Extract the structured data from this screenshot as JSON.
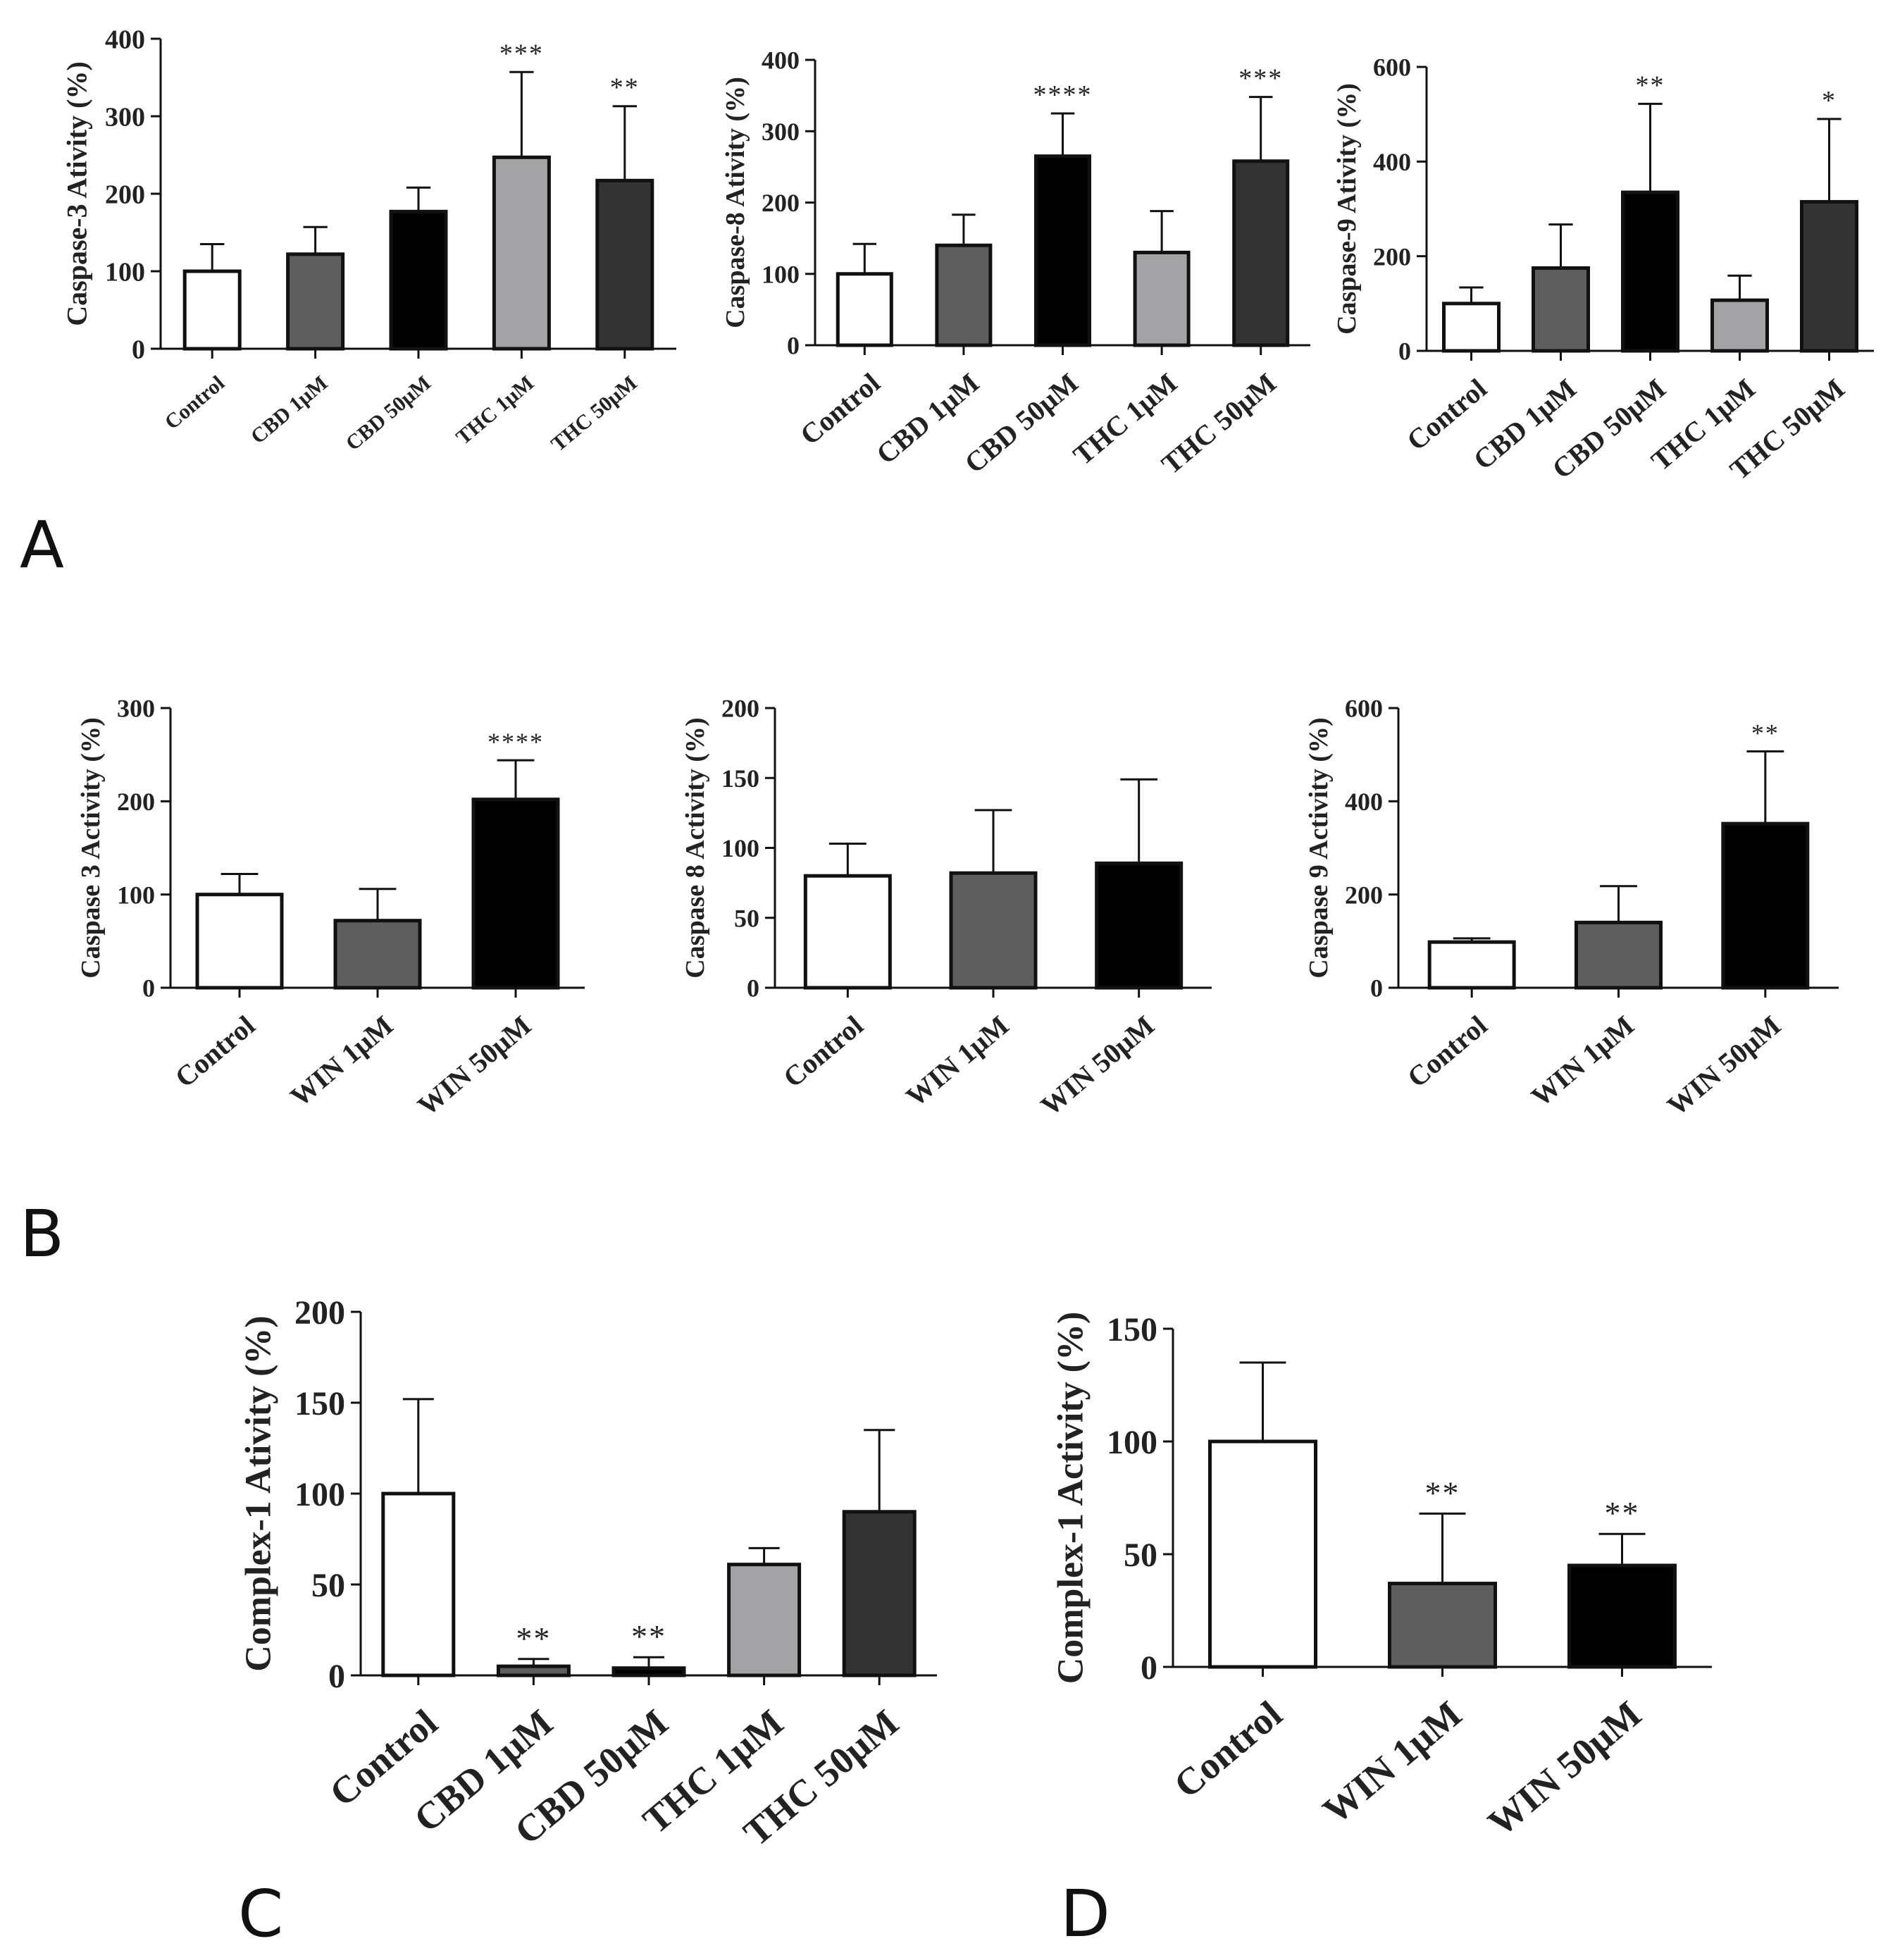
{
  "panel_labels": [
    "A",
    "B",
    "C",
    "D"
  ],
  "colors": {
    "Control": "#ffffff",
    "CBD 1μM": "#5e5e5e",
    "CBD 50μM": "#000000",
    "THC 1μM": "#a3a3a6",
    "THC 50μM": "#333333",
    "WIN 1μM": "#5e5e5e",
    "WIN 50μM": "#000000",
    "outline": "#111111"
  },
  "chart_data": [
    {
      "id": "A1",
      "panel": "A",
      "type": "bar",
      "ylabel": "Caspase-3 Ativity (%)",
      "categories": [
        "Control",
        "CBD 1μM",
        "CBD 50μM",
        "THC 1μM",
        "THC 50μM"
      ],
      "values": [
        100,
        122,
        177,
        247,
        217
      ],
      "errors": [
        35,
        35,
        31,
        110,
        96
      ],
      "significance": [
        "",
        "",
        "",
        "***",
        "**"
      ],
      "ylim": [
        0,
        400
      ],
      "yticks": [
        0,
        100,
        200,
        300,
        400
      ]
    },
    {
      "id": "A2",
      "panel": "A",
      "type": "bar",
      "ylabel": "Caspase-8 Ativity (%)",
      "categories": [
        "Control",
        "CBD 1μM",
        "CBD 50μM",
        "THC 1μM",
        "THC 50μM"
      ],
      "values": [
        100,
        140,
        265,
        130,
        258
      ],
      "errors": [
        42,
        43,
        60,
        58,
        90
      ],
      "significance": [
        "",
        "",
        "****",
        "",
        "***"
      ],
      "ylim": [
        0,
        400
      ],
      "yticks": [
        0,
        100,
        200,
        300,
        400
      ]
    },
    {
      "id": "A3",
      "panel": "A",
      "type": "bar",
      "ylabel": "Caspase-9 Ativity (%)",
      "categories": [
        "Control",
        "CBD 1μM",
        "CBD 50μM",
        "THC 1μM",
        "THC 50μM"
      ],
      "values": [
        100,
        175,
        335,
        107,
        315
      ],
      "errors": [
        34,
        92,
        187,
        52,
        175
      ],
      "significance": [
        "",
        "",
        "**",
        "",
        "*"
      ],
      "ylim": [
        0,
        600
      ],
      "yticks": [
        0,
        200,
        400,
        600
      ]
    },
    {
      "id": "B1",
      "panel": "B",
      "type": "bar",
      "ylabel": "Caspase 3 Activity (%)",
      "categories": [
        "Control",
        "WIN 1μM",
        "WIN 50μM"
      ],
      "values": [
        100,
        72,
        202
      ],
      "errors": [
        22,
        34,
        42
      ],
      "significance": [
        "",
        "",
        "****"
      ],
      "ylim": [
        0,
        300
      ],
      "yticks": [
        0,
        100,
        200,
        300
      ]
    },
    {
      "id": "B2",
      "panel": "B",
      "type": "bar",
      "ylabel": "Caspase 8 Activity (%)",
      "categories": [
        "Control",
        "WIN 1μM",
        "WIN 50μM"
      ],
      "values": [
        80,
        82,
        89
      ],
      "errors": [
        23,
        45,
        60
      ],
      "significance": [
        "",
        "",
        ""
      ],
      "ylim": [
        0,
        200
      ],
      "yticks": [
        0,
        50,
        100,
        150,
        200
      ]
    },
    {
      "id": "B3",
      "panel": "B",
      "type": "bar",
      "ylabel": "Caspase 9 Activity (%)",
      "categories": [
        "Control",
        "WIN 1μM",
        "WIN 50μM"
      ],
      "values": [
        98,
        140,
        352
      ],
      "errors": [
        8,
        78,
        155
      ],
      "significance": [
        "",
        "",
        "**"
      ],
      "ylim": [
        0,
        600
      ],
      "yticks": [
        0,
        200,
        400,
        600
      ]
    },
    {
      "id": "C",
      "panel": "C",
      "type": "bar",
      "ylabel": "Complex-1 Ativity (%)",
      "categories": [
        "Control",
        "CBD 1μM",
        "CBD 50μM",
        "THC 1μM",
        "THC 50μM"
      ],
      "values": [
        100,
        5,
        4,
        61,
        90
      ],
      "errors": [
        52,
        4,
        6,
        9,
        45
      ],
      "significance": [
        "",
        "**",
        "**",
        "",
        ""
      ],
      "ylim": [
        0,
        200
      ],
      "yticks": [
        0,
        50,
        100,
        150,
        200
      ]
    },
    {
      "id": "D",
      "panel": "D",
      "type": "bar",
      "ylabel": "Complex-1 Activity (%)",
      "categories": [
        "Control",
        "WIN 1μM",
        "WIN 50μM"
      ],
      "values": [
        100,
        37,
        45
      ],
      "errors": [
        35,
        31,
        14
      ],
      "significance": [
        "",
        "**",
        "**"
      ],
      "ylim": [
        0,
        150
      ],
      "yticks": [
        0,
        50,
        100,
        150
      ]
    }
  ]
}
